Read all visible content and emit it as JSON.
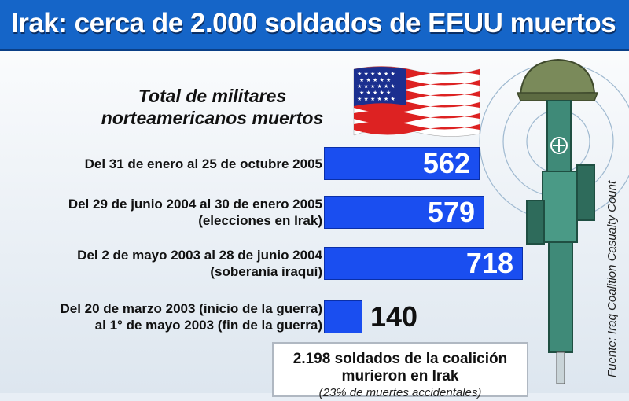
{
  "header": {
    "title": "Irak: cerca de 2.000 soldados de EEUU muertos"
  },
  "chart_data": {
    "type": "bar",
    "title": "Total de militares norteamericanos muertos",
    "categories": [
      "Del 31 de enero al 25 de octubre 2005",
      "Del 29 de junio 2004 al 30 de enero 2005 (elecciones en Irak)",
      "Del 2 de mayo 2003 al 28 de junio 2004 (soberanía iraquí)",
      "Del 20 de marzo 2003 (inicio de la guerra) al 1° de mayo 2003 (fin de la guerra)"
    ],
    "category_lines": [
      [
        "Del 31 de enero al 25 de octubre 2005"
      ],
      [
        "Del 29 de junio 2004 al 30 de enero 2005",
        "(elecciones en Irak)"
      ],
      [
        "Del 2 de mayo 2003 al 28 de junio 2004",
        "(soberanía iraquí)"
      ],
      [
        "Del 20 de marzo 2003 (inicio de la guerra)",
        "al 1° de mayo 2003 (fin de la guerra)"
      ]
    ],
    "values": [
      562,
      579,
      718,
      140
    ],
    "xlim": [
      0,
      718
    ],
    "bar_color": "#1a4ef0",
    "orientation": "horizontal",
    "grid": false,
    "legend": "none"
  },
  "footer": {
    "title_line1": "2.198 soldados de la coalición",
    "title_line2": "murieron en Irak",
    "note": "(23% de muertes accidentales)"
  },
  "source": "Fuente: Iraq Coalition Casualty Count",
  "colors": {
    "title_bar": "#1565c8",
    "bar": "#1a4ef0",
    "background": "#e8eef5"
  },
  "icons": {
    "flag": "us-flag-icon",
    "memorial": "rifle-helmet-memorial-icon"
  }
}
